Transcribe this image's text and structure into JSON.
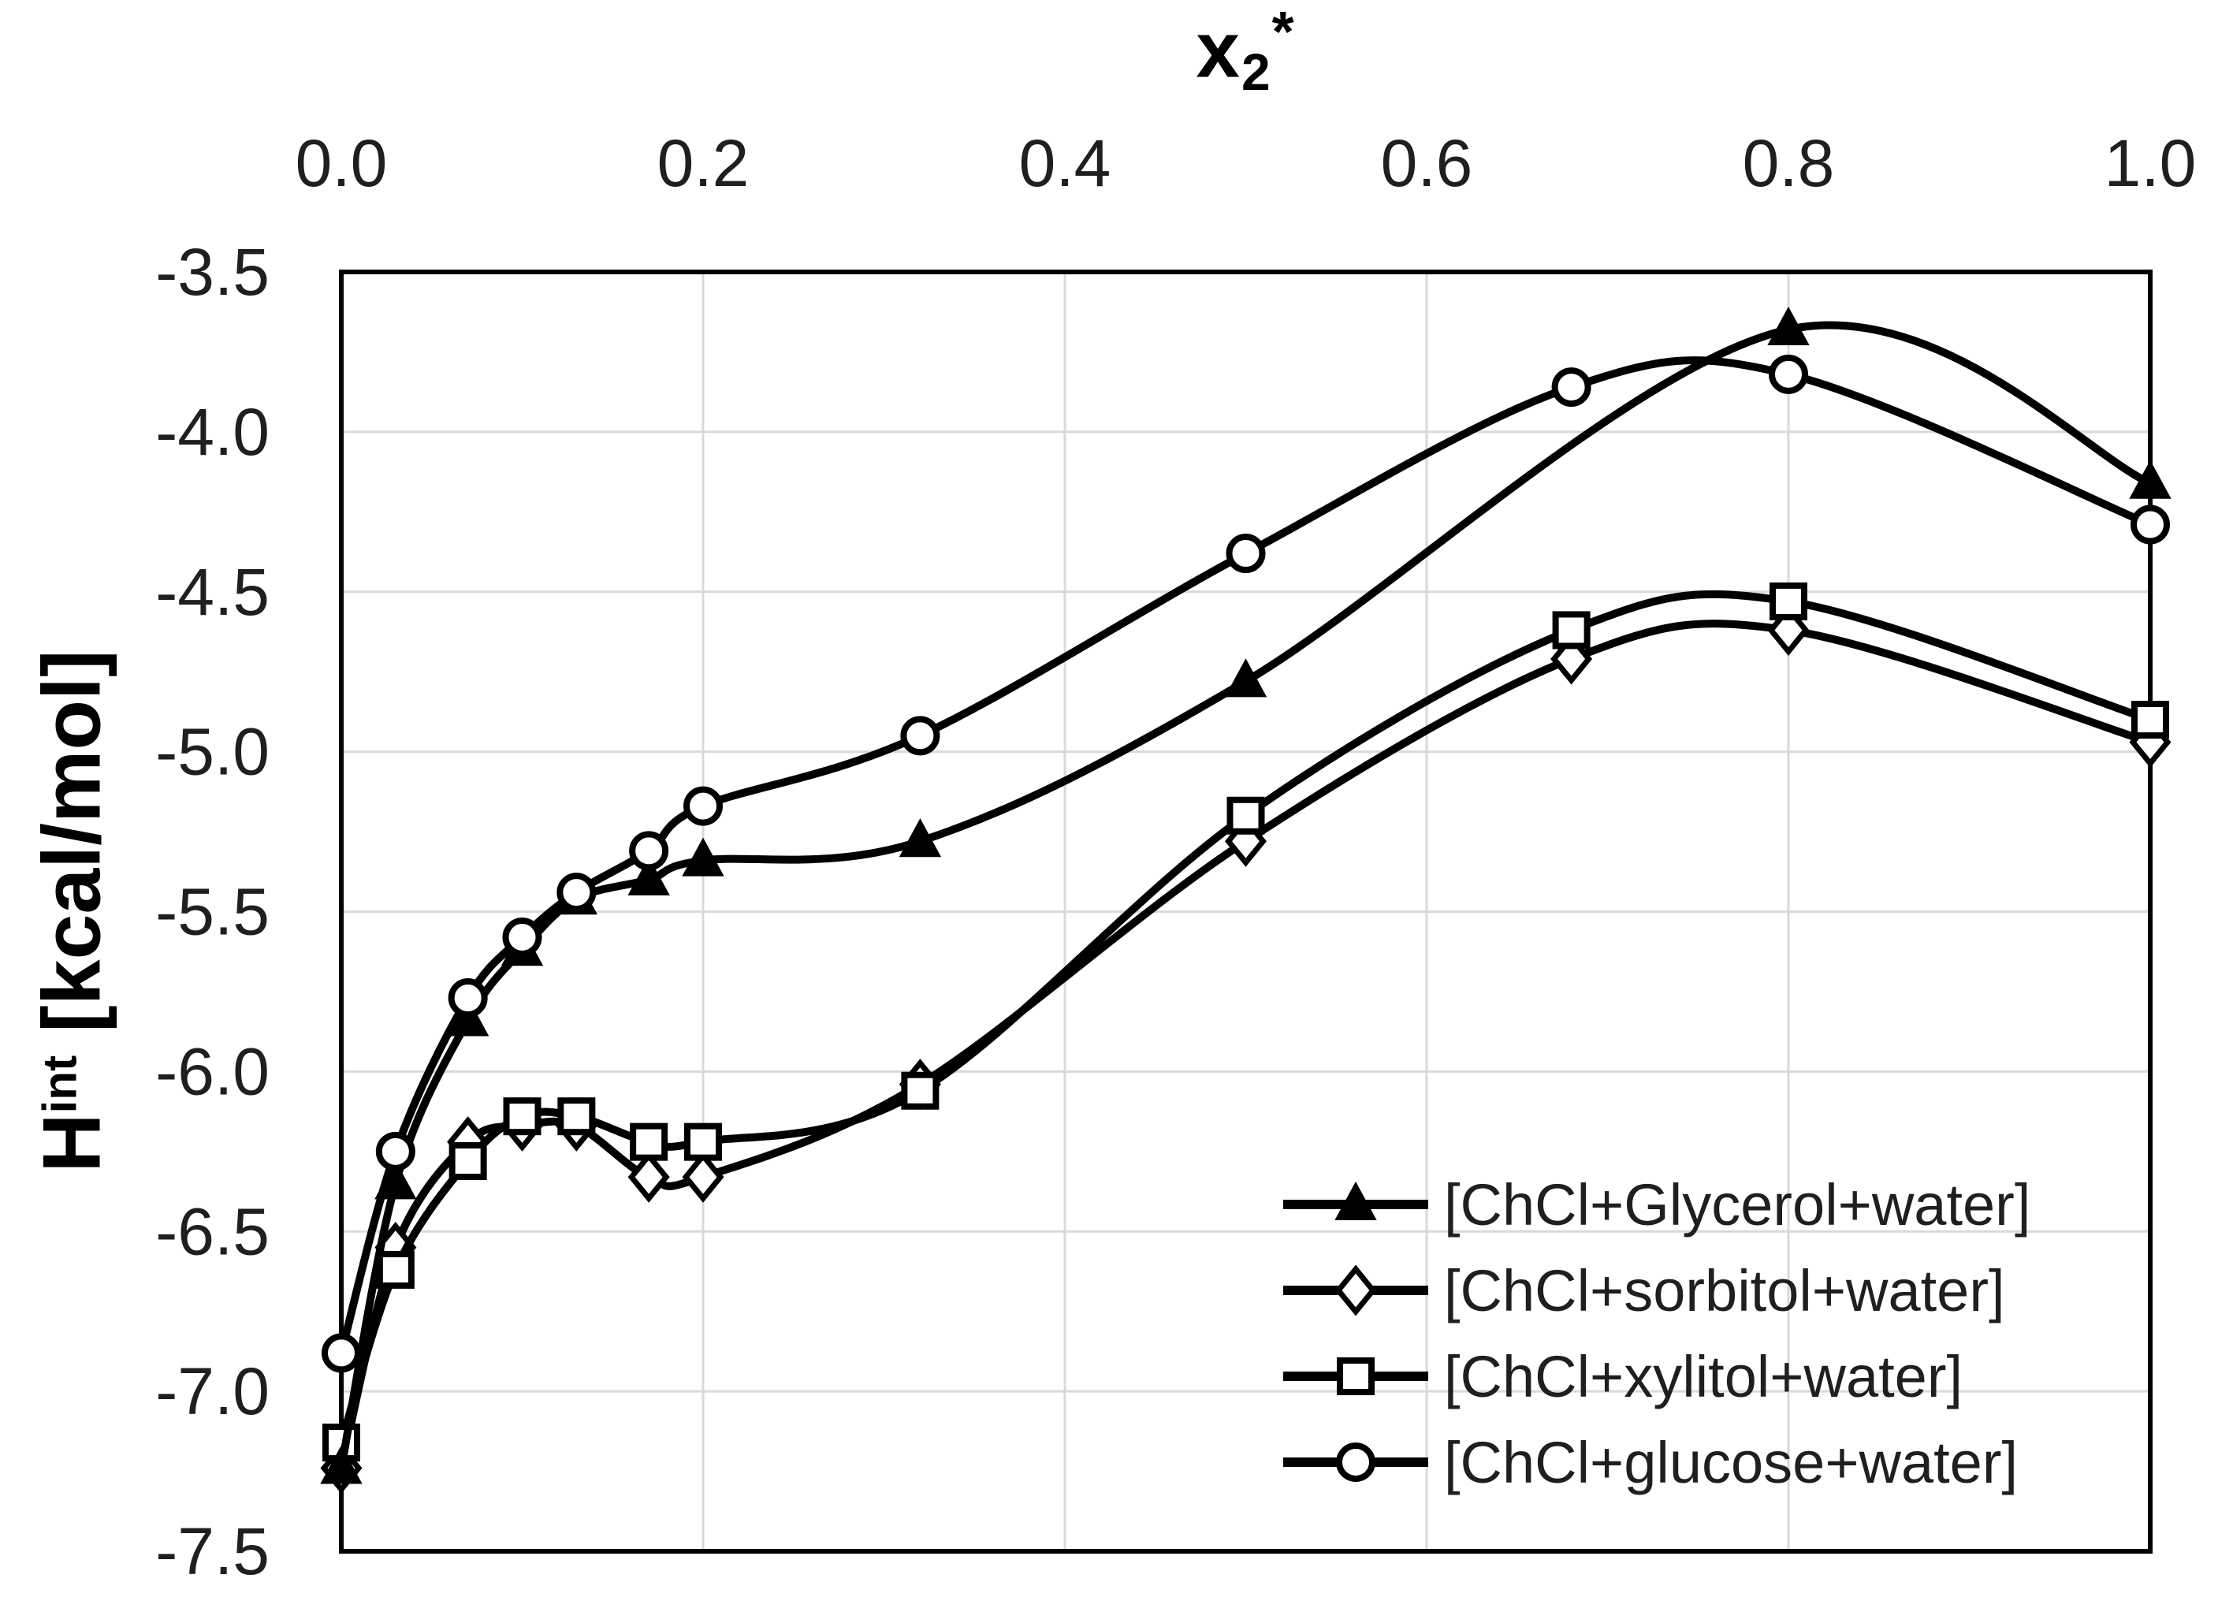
{
  "chart_data": {
    "type": "line",
    "title": "x2*",
    "title_parts": {
      "base": "x",
      "sub": "2",
      "sup": "*"
    },
    "ylabel": "Hint [kcal/mol]",
    "ylabel_parts": {
      "base": "H",
      "sup": "int",
      "rest": " [kcal/mol]"
    },
    "x": [
      0,
      0.03,
      0.07,
      0.1,
      0.13,
      0.17,
      0.2,
      0.32,
      0.5,
      0.68,
      0.8,
      1.0
    ],
    "series": [
      {
        "name": "[ChCl+Glycerol+water]",
        "marker": "triangle-filled",
        "values": [
          -7.24,
          -6.35,
          -5.84,
          -5.62,
          -5.46,
          -5.4,
          -5.34,
          -5.28,
          -4.78,
          null,
          -3.68,
          -4.16
        ]
      },
      {
        "name": "[ChCl+sorbitol+water]",
        "marker": "diamond-open",
        "values": [
          -7.24,
          -6.55,
          -6.22,
          -6.17,
          -6.17,
          -6.33,
          -6.33,
          -6.04,
          -5.28,
          -4.71,
          -4.62,
          -4.97
        ]
      },
      {
        "name": "[ChCl+xylitol+water]",
        "marker": "square-open",
        "values": [
          -7.16,
          -6.62,
          -6.28,
          -6.14,
          -6.14,
          -6.22,
          -6.22,
          -6.06,
          -5.2,
          -4.62,
          -4.53,
          -4.9
        ]
      },
      {
        "name": "[ChCl+glucose+water]",
        "marker": "circle-open",
        "values": [
          -6.88,
          -6.25,
          -5.77,
          -5.58,
          -5.44,
          -5.31,
          -5.17,
          -4.95,
          -4.38,
          -3.86,
          -3.82,
          -4.29
        ]
      }
    ],
    "x_ticks": [
      "0.0",
      "0.2",
      "0.4",
      "0.6",
      "0.8",
      "1.0"
    ],
    "x_tick_values": [
      0,
      0.2,
      0.4,
      0.6,
      0.8,
      1.0
    ],
    "y_ticks": [
      "-3.5",
      "-4.0",
      "-4.5",
      "-5.0",
      "-5.5",
      "-6.0",
      "-6.5",
      "-7.0",
      "-7.5"
    ],
    "y_tick_values": [
      -3.5,
      -4.0,
      -4.5,
      -5.0,
      -5.5,
      -6.0,
      -6.5,
      -7.0,
      -7.5
    ],
    "xlim": [
      0,
      1
    ],
    "ylim": [
      -7.5,
      -3.5
    ],
    "grid": true,
    "legend_position": "inside-bottom-right",
    "colors": {
      "line": "#000000",
      "marker_fill": "#ffffff",
      "grid": "#d9d9d9",
      "border": "#000000",
      "text": "#1f1f1f",
      "background": "#ffffff"
    }
  }
}
